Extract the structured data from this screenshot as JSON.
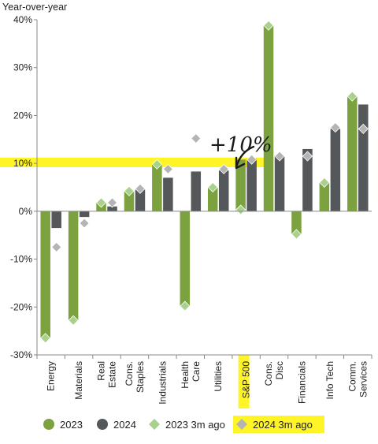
{
  "chart_data": {
    "type": "bar",
    "ylabel": "Year-over-year",
    "yticks": [
      "40%",
      "30%",
      "20%",
      "10%",
      "0%",
      "-10%",
      "-20%",
      "-30%"
    ],
    "ylim": [
      -30,
      40
    ],
    "categories": [
      [
        "Energy"
      ],
      [
        "Materials"
      ],
      [
        "Real",
        "Estate"
      ],
      [
        "Cons.",
        "Staples"
      ],
      [
        "Industrials"
      ],
      [
        "Health",
        "Care"
      ],
      [
        "Utilities"
      ],
      [
        "S&P 500"
      ],
      [
        "Cons.",
        "Disc"
      ],
      [
        "Financials"
      ],
      [
        "Info Tech"
      ],
      [
        "Comm.",
        "Services"
      ]
    ],
    "series": [
      {
        "name": "2023",
        "kind": "bar",
        "color": "#7ba23f",
        "values": [
          -26.5,
          -22.8,
          1.8,
          4.2,
          9.8,
          -19.8,
          5.0,
          10.8,
          38.8,
          -4.8,
          6.0,
          24.0
        ]
      },
      {
        "name": "2024",
        "kind": "bar",
        "color": "#54585a",
        "values": [
          -3.5,
          -1.2,
          1.0,
          4.5,
          7.0,
          8.3,
          8.5,
          11.0,
          11.5,
          13.0,
          17.2,
          22.3
        ]
      },
      {
        "name": "2023 3m ago",
        "kind": "marker",
        "color": "#a9d18e",
        "values": [
          -26.5,
          -22.8,
          1.8,
          4.2,
          9.8,
          -19.8,
          5.0,
          0.3,
          38.8,
          -4.8,
          6.0,
          24.0
        ]
      },
      {
        "name": "2024 3m ago",
        "kind": "marker",
        "color": "#b4b4b4",
        "values": [
          -7.5,
          -2.5,
          1.8,
          4.7,
          8.8,
          15.2,
          8.8,
          10.8,
          11.5,
          11.5,
          17.5,
          17.2
        ]
      }
    ],
    "highlight_band": {
      "from": 9.2,
      "to": 11.2,
      "color": "#fff200"
    },
    "annotation": "+10%",
    "grid": false,
    "legend": "bottom"
  }
}
